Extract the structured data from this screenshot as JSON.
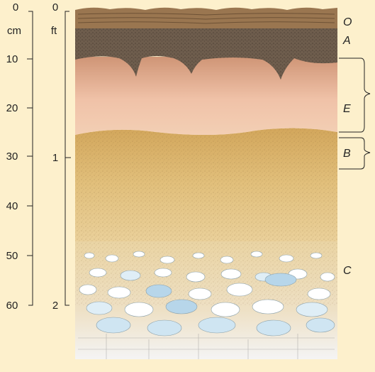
{
  "colors": {
    "background": "#fdf0cc",
    "horizon_O": "#8a6a45",
    "horizon_A": "#6e5d4d",
    "horizon_E": "#e8b597",
    "horizon_B": "#d9b878",
    "horizon_C": "#e6d2a4",
    "rock": "#b7d6ea"
  },
  "scales": {
    "cm": {
      "unit": "cm",
      "ticks": [
        "0",
        "10",
        "20",
        "30",
        "40",
        "50",
        "60"
      ]
    },
    "ft": {
      "unit": "ft",
      "ticks": [
        "0",
        "1",
        "2"
      ]
    }
  },
  "horizons": [
    {
      "id": "O",
      "label": "O"
    },
    {
      "id": "A",
      "label": "A"
    },
    {
      "id": "E",
      "label": "E"
    },
    {
      "id": "B",
      "label": "B"
    },
    {
      "id": "C",
      "label": "C"
    }
  ]
}
